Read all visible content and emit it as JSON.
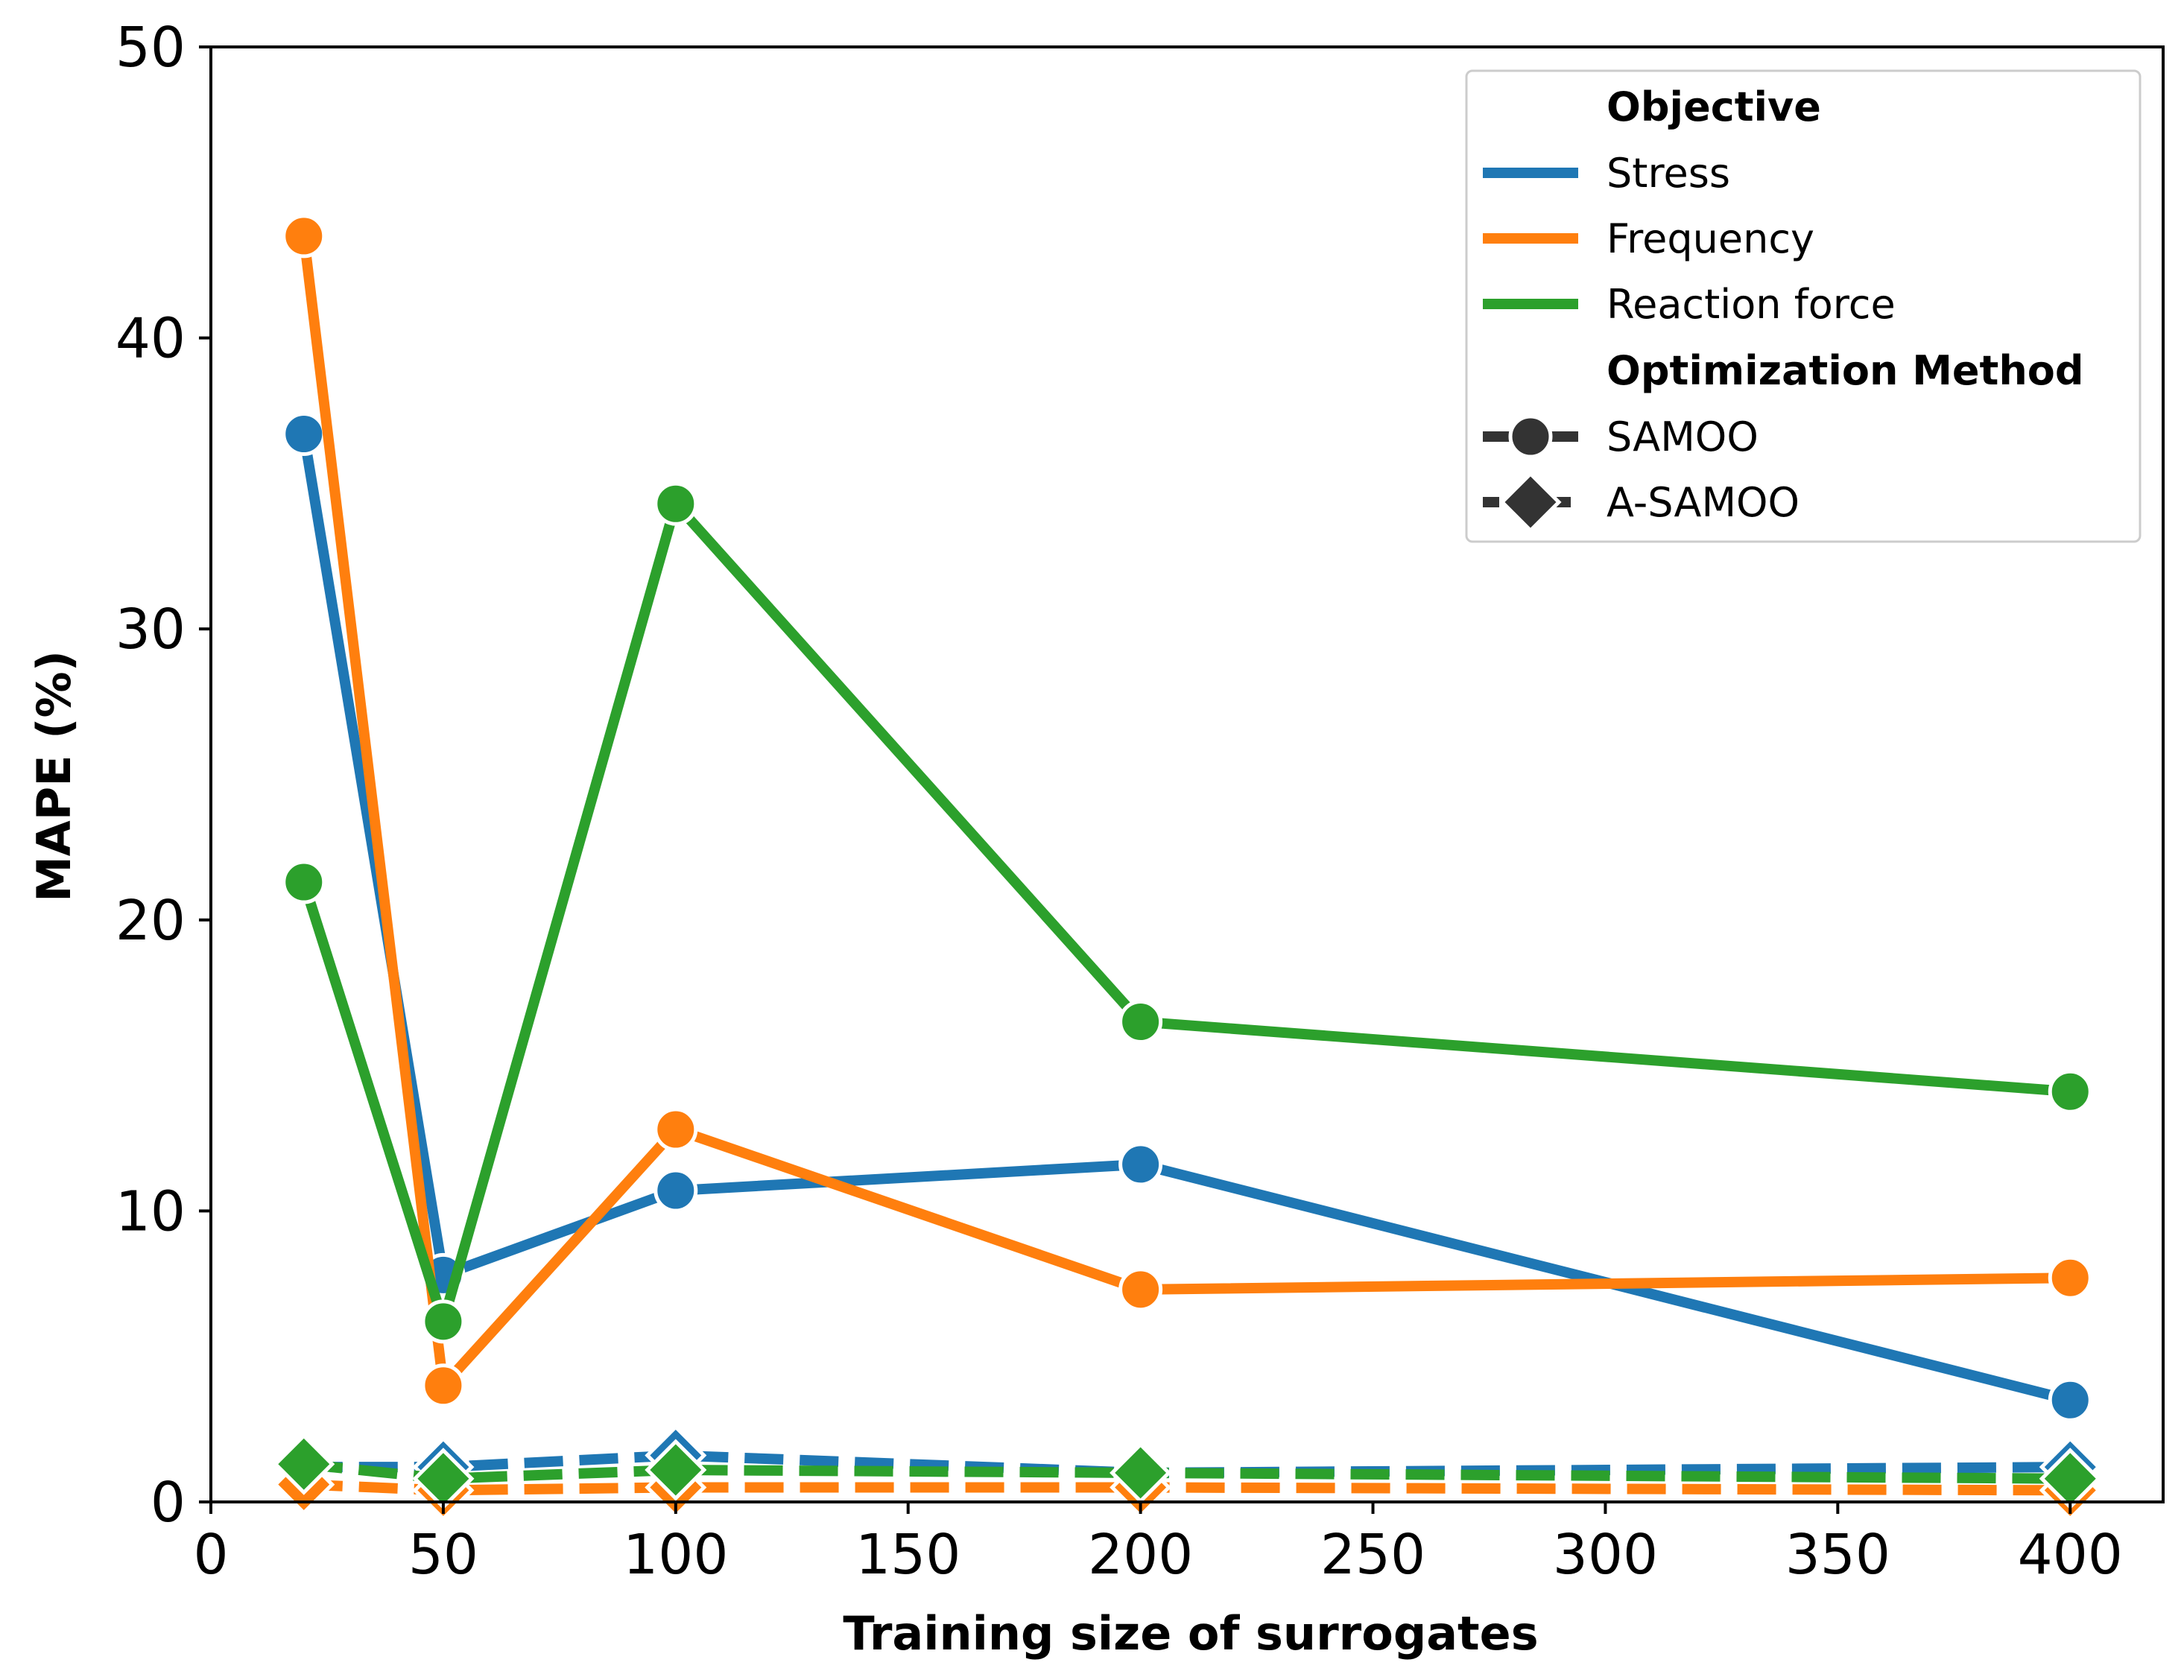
{
  "chart_data": {
    "type": "line",
    "title": "",
    "xlabel": "Training size of surrogates",
    "ylabel": "MAPE (%)",
    "xlim": [
      0,
      420
    ],
    "ylim": [
      0,
      50
    ],
    "xticks": [
      0,
      50,
      100,
      150,
      200,
      250,
      300,
      350,
      400
    ],
    "yticks": [
      0,
      10,
      20,
      30,
      40,
      50
    ],
    "x": [
      20,
      50,
      100,
      200,
      400
    ],
    "legend": {
      "position": "top-right",
      "hue_title": "Objective",
      "style_title": "Optimization Method"
    },
    "objectives": [
      {
        "name": "Stress",
        "color": "#1f77b4"
      },
      {
        "name": "Frequency",
        "color": "#ff7f0e"
      },
      {
        "name": "Reaction force",
        "color": "#2ca02c"
      }
    ],
    "methods": [
      {
        "name": "SAMOO",
        "marker": "circle",
        "linestyle": "solid"
      },
      {
        "name": "A-SAMOO",
        "marker": "diamond",
        "linestyle": "dashed"
      }
    ],
    "series": [
      {
        "objective": "Stress",
        "method": "SAMOO",
        "values": [
          36.7,
          7.8,
          10.7,
          11.6,
          3.5
        ]
      },
      {
        "objective": "Frequency",
        "method": "SAMOO",
        "values": [
          43.5,
          4.0,
          12.8,
          7.3,
          7.7
        ]
      },
      {
        "objective": "Reaction force",
        "method": "SAMOO",
        "values": [
          21.3,
          6.2,
          34.3,
          16.5,
          14.1
        ]
      },
      {
        "objective": "Stress",
        "method": "A-SAMOO",
        "values": [
          1.2,
          1.2,
          1.6,
          1.0,
          1.2
        ]
      },
      {
        "objective": "Frequency",
        "method": "A-SAMOO",
        "values": [
          0.6,
          0.4,
          0.5,
          0.5,
          0.4
        ]
      },
      {
        "objective": "Reaction force",
        "method": "A-SAMOO",
        "values": [
          1.3,
          0.8,
          1.1,
          1.0,
          0.8
        ]
      }
    ]
  }
}
